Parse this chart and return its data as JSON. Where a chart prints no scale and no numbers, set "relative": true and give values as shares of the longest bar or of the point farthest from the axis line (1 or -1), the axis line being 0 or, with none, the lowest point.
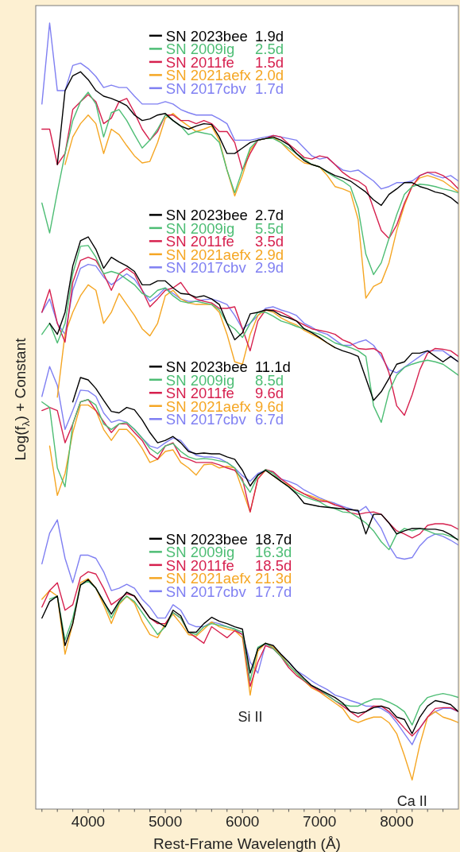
{
  "chart_data": {
    "type": "line",
    "relative": true,
    "xlabel": "Rest-Frame Wavelength (Å)",
    "ylabel": "Log(f$_{λ}$) + Constant",
    "xlim": [
      3320,
      8800
    ],
    "xticks": [
      {
        "value": 3400,
        "label": null
      },
      {
        "value": 3600,
        "label": null
      },
      {
        "value": 3800,
        "label": null
      },
      4000,
      {
        "value": 4200,
        "label": null
      },
      {
        "value": 4400,
        "label": null
      },
      {
        "value": 4600,
        "label": null
      },
      {
        "value": 4800,
        "label": null
      },
      5000,
      {
        "value": 5200,
        "label": null
      },
      {
        "value": 5400,
        "label": null
      },
      {
        "value": 5600,
        "label": null
      },
      {
        "value": 5800,
        "label": null
      },
      6000,
      {
        "value": 6200,
        "label": null
      },
      {
        "value": 6400,
        "label": null
      },
      {
        "value": 6600,
        "label": null
      },
      {
        "value": 6800,
        "label": null
      },
      7000,
      {
        "value": 7200,
        "label": null
      },
      {
        "value": 7400,
        "label": null
      },
      {
        "value": 7600,
        "label": null
      },
      {
        "value": 7800,
        "label": null
      },
      8000,
      {
        "value": 8200,
        "label": null
      },
      {
        "value": 8400,
        "label": null
      },
      {
        "value": 8600,
        "label": null
      }
    ],
    "tick_labels": "x",
    "legend": "top",
    "annotations": [
      {
        "text": "Si II",
        "x": 6100,
        "y": 0.145
      },
      {
        "text": "Ca II",
        "x": 8200,
        "y": 0.037
      }
    ],
    "x": [
      3400,
      3500,
      3600,
      3700,
      3800,
      3900,
      4000,
      4100,
      4200,
      4300,
      4400,
      4500,
      4600,
      4700,
      4800,
      4900,
      5000,
      5100,
      5200,
      5300,
      5400,
      5500,
      5600,
      5700,
      5800,
      5900,
      6000,
      6100,
      6200,
      6300,
      6400,
      6500,
      6600,
      6700,
      6800,
      6900,
      7000,
      7100,
      7200,
      7300,
      7400,
      7500,
      7600,
      7700,
      7800,
      7900,
      8000,
      8100,
      8200,
      8300,
      8400,
      8500,
      8600,
      8700,
      8800
    ],
    "series": [
      {
        "name": "SN 2023bee 1.9d",
        "color": "#000000",
        "values": [
          null,
          null,
          0.82,
          0.914,
          0.933,
          0.938,
          0.928,
          0.914,
          0.907,
          0.904,
          0.9,
          0.895,
          0.883,
          0.876,
          0.878,
          0.883,
          0.885,
          0.876,
          0.869,
          0.865,
          0.869,
          0.872,
          0.871,
          0.855,
          0.834,
          0.834,
          0.841,
          0.848,
          0.851,
          0.853,
          0.855,
          0.851,
          0.845,
          0.834,
          0.825,
          0.82,
          0.817,
          0.811,
          0.806,
          0.803,
          0.799,
          0.792,
          0.785,
          0.775,
          0.768,
          0.782,
          0.789,
          0.797,
          0.797,
          0.792,
          0.789,
          0.785,
          0.783,
          0.778,
          0.77
        ]
      },
      {
        "name": "SN 2009ig 2.5d",
        "color": "#4dbd74",
        "values": [
          0.771,
          0.733,
          0.785,
          0.834,
          0.876,
          0.9,
          0.912,
          0.897,
          0.855,
          0.886,
          0.89,
          0.876,
          0.858,
          0.841,
          0.851,
          0.865,
          0.883,
          0.876,
          0.869,
          0.858,
          0.862,
          0.86,
          0.858,
          0.848,
          0.813,
          0.784,
          0.813,
          0.841,
          0.851,
          0.853,
          0.853,
          0.848,
          0.841,
          0.834,
          0.827,
          0.82,
          0.817,
          0.81,
          0.804,
          0.799,
          0.792,
          0.764,
          0.706,
          0.68,
          0.695,
          0.726,
          0.756,
          0.782,
          0.792,
          0.795,
          0.794,
          0.792,
          0.789,
          0.787,
          0.784
        ]
      },
      {
        "name": "SN 2011fe 1.5d",
        "color": "#d6204e",
        "values": [
          0.865,
          0.865,
          0.82,
          0.834,
          0.89,
          0.9,
          0.909,
          0.9,
          0.872,
          0.879,
          0.9,
          0.904,
          0.886,
          0.865,
          0.851,
          0.862,
          0.883,
          0.883,
          0.876,
          0.876,
          0.872,
          0.876,
          0.872,
          0.862,
          0.862,
          0.848,
          0.813,
          0.834,
          0.851,
          0.853,
          0.857,
          0.855,
          0.846,
          0.838,
          0.829,
          0.827,
          0.831,
          0.829,
          0.82,
          0.81,
          0.803,
          0.799,
          0.792,
          0.764,
          0.736,
          0.726,
          0.743,
          0.771,
          0.792,
          0.806,
          0.81,
          0.81,
          0.806,
          0.799,
          0.789
        ]
      },
      {
        "name": "SN 2021aefx 2.0d",
        "color": "#f5a623",
        "values": [
          null,
          null,
          null,
          0.82,
          0.855,
          0.872,
          0.883,
          0.872,
          0.834,
          0.865,
          0.858,
          0.844,
          0.831,
          0.822,
          0.824,
          0.848,
          0.879,
          0.885,
          0.876,
          0.869,
          0.862,
          0.865,
          0.869,
          0.851,
          0.813,
          0.78,
          0.806,
          0.838,
          0.851,
          0.853,
          0.855,
          0.848,
          0.838,
          0.829,
          0.822,
          0.82,
          0.817,
          0.806,
          0.792,
          0.789,
          0.785,
          0.75,
          0.65,
          0.665,
          0.67,
          0.695,
          0.736,
          0.768,
          0.793,
          0.803,
          0.806,
          0.803,
          0.799,
          0.792,
          0.785
        ]
      },
      {
        "name": "SN 2017cbv 1.7d",
        "color": "#7f7ff2",
        "values": [
          0.897,
          1.0,
          0.914,
          0.914,
          0.946,
          0.949,
          0.942,
          0.932,
          0.918,
          0.921,
          0.918,
          0.918,
          0.907,
          0.897,
          0.897,
          0.897,
          0.9,
          0.897,
          0.89,
          0.886,
          0.883,
          0.883,
          0.883,
          0.878,
          0.872,
          0.851,
          0.851,
          0.851,
          0.853,
          0.855,
          0.857,
          0.855,
          0.853,
          0.851,
          0.841,
          0.831,
          0.827,
          0.829,
          0.82,
          0.813,
          0.811,
          0.813,
          0.806,
          0.799,
          0.789,
          0.792,
          0.797,
          0.797,
          0.799,
          0.806,
          0.81,
          0.806,
          0.803,
          0.806,
          0.799
        ]
      },
      {
        "name": "SN 2023bee 2.7d",
        "color": "#000000",
        "values": [
          null,
          0.618,
          0.604,
          0.632,
          0.691,
          0.723,
          0.728,
          0.712,
          0.688,
          0.702,
          0.696,
          0.691,
          0.684,
          0.667,
          0.667,
          0.672,
          0.672,
          0.663,
          0.656,
          0.655,
          0.651,
          0.653,
          0.649,
          0.642,
          0.618,
          0.597,
          0.606,
          0.63,
          0.632,
          0.635,
          0.634,
          0.628,
          0.625,
          0.621,
          0.611,
          0.606,
          0.6,
          0.593,
          0.587,
          0.583,
          0.58,
          0.576,
          0.548,
          0.52,
          0.531,
          0.548,
          0.566,
          0.569,
          0.58,
          0.58,
          0.583,
          0.576,
          0.569,
          0.576,
          0.569
        ]
      },
      {
        "name": "SN 2009ig 5.5d",
        "color": "#4dbd74",
        "values": [
          0.604,
          0.618,
          0.593,
          0.618,
          0.681,
          0.716,
          0.717,
          0.702,
          0.681,
          0.684,
          0.681,
          0.674,
          0.667,
          0.656,
          0.651,
          0.66,
          0.663,
          0.653,
          0.646,
          0.644,
          0.646,
          0.644,
          0.642,
          0.635,
          0.618,
          0.611,
          0.6,
          0.618,
          0.632,
          0.632,
          0.627,
          0.621,
          0.618,
          0.614,
          0.611,
          0.607,
          0.604,
          0.599,
          0.593,
          0.59,
          0.587,
          0.583,
          0.576,
          0.513,
          0.492,
          0.531,
          0.552,
          0.562,
          0.566,
          0.569,
          0.571,
          0.569,
          0.566,
          0.559,
          0.552
        ]
      },
      {
        "name": "SN 2011fe 3.5d",
        "color": "#d6204e",
        "values": [
          0.632,
          0.661,
          0.618,
          0.594,
          0.67,
          0.698,
          0.702,
          0.698,
          0.681,
          0.66,
          0.681,
          0.688,
          0.681,
          0.66,
          0.639,
          0.649,
          0.66,
          0.663,
          0.67,
          0.656,
          0.649,
          0.646,
          0.644,
          0.637,
          0.637,
          0.639,
          0.611,
          0.583,
          0.621,
          0.635,
          0.635,
          0.632,
          0.627,
          0.621,
          0.616,
          0.611,
          0.609,
          0.607,
          0.604,
          0.597,
          0.593,
          0.586,
          0.585,
          0.586,
          0.58,
          0.555,
          0.513,
          0.501,
          0.527,
          0.559,
          0.58,
          0.586,
          0.585,
          0.583,
          0.576
        ]
      },
      {
        "name": "SN 2021aefx 2.9d",
        "color": "#f5a623",
        "values": [
          null,
          null,
          0.524,
          0.605,
          0.632,
          0.653,
          0.667,
          0.66,
          0.618,
          0.632,
          0.656,
          0.642,
          0.628,
          0.611,
          0.602,
          0.618,
          0.653,
          0.66,
          0.649,
          0.644,
          0.642,
          0.642,
          0.642,
          0.632,
          0.604,
          0.569,
          0.566,
          0.604,
          0.628,
          0.635,
          0.632,
          0.625,
          0.62,
          0.616,
          0.609,
          0.604,
          0.599,
          0.593,
          0.587,
          null,
          null,
          null,
          null,
          null,
          null,
          null,
          null,
          null,
          null,
          null,
          null,
          null,
          null,
          null,
          null
        ]
      },
      {
        "name": "SN 2017cbv 2.9d",
        "color": "#7f7ff2",
        "values": [
          0.632,
          0.649,
          0.618,
          0.604,
          0.66,
          0.688,
          0.693,
          0.691,
          0.677,
          0.667,
          0.674,
          0.681,
          0.674,
          0.66,
          0.646,
          0.653,
          0.663,
          0.656,
          0.649,
          0.646,
          0.646,
          0.648,
          0.649,
          0.646,
          0.642,
          0.628,
          0.611,
          0.618,
          0.628,
          0.637,
          0.639,
          0.635,
          0.632,
          0.628,
          0.618,
          0.613,
          0.607,
          0.604,
          0.597,
          0.59,
          0.59,
          0.594,
          0.597,
          0.59,
          0.576,
          0.559,
          0.555,
          0.562,
          0.569,
          0.576,
          0.583,
          0.583,
          0.583,
          0.576,
          0.569
        ]
      },
      {
        "name": "SN 2023bee 11.1d",
        "color": "#000000",
        "values": [
          null,
          null,
          null,
          null,
          0.518,
          0.549,
          0.546,
          0.535,
          0.52,
          0.506,
          0.504,
          0.511,
          0.508,
          0.495,
          0.479,
          0.466,
          0.469,
          0.474,
          0.466,
          0.455,
          0.452,
          0.453,
          0.452,
          0.452,
          0.448,
          0.445,
          0.431,
          0.411,
          0.425,
          0.431,
          0.424,
          0.417,
          0.41,
          0.401,
          0.389,
          0.387,
          0.385,
          0.384,
          0.383,
          0.382,
          0.381,
          0.38,
          0.35,
          0.375,
          0.375,
          0.364,
          0.35,
          0.354,
          0.357,
          0.357,
          0.356,
          0.356,
          0.354,
          0.349,
          0.342
        ]
      },
      {
        "name": "SN 2009ig 8.5d",
        "color": "#4dbd74",
        "values": [
          0.518,
          0.511,
          0.434,
          0.41,
          0.49,
          0.518,
          0.521,
          0.514,
          0.49,
          0.483,
          0.49,
          0.492,
          0.483,
          0.472,
          0.459,
          0.452,
          0.462,
          0.465,
          0.455,
          0.448,
          0.445,
          0.446,
          0.445,
          0.443,
          0.441,
          0.434,
          0.417,
          0.403,
          0.424,
          0.432,
          0.427,
          0.417,
          0.41,
          0.403,
          0.398,
          0.394,
          0.391,
          0.385,
          0.382,
          0.378,
          0.377,
          0.371,
          0.364,
          0.354,
          0.34,
          0.33,
          0.35,
          0.357,
          0.354,
          0.357,
          0.354,
          0.35,
          0.35,
          0.347,
          0.343
        ]
      },
      {
        "name": "SN 2011fe 9.6d",
        "color": "#d6204e",
        "values": [
          0.507,
          0.511,
          0.507,
          0.466,
          0.49,
          0.518,
          0.521,
          0.507,
          0.493,
          0.479,
          0.49,
          0.49,
          0.479,
          0.469,
          0.452,
          0.445,
          0.462,
          0.466,
          0.448,
          0.445,
          0.441,
          0.441,
          0.441,
          0.438,
          0.434,
          0.431,
          0.42,
          0.378,
          0.42,
          0.432,
          0.429,
          0.42,
          0.413,
          0.406,
          0.401,
          0.396,
          0.392,
          0.391,
          0.387,
          0.384,
          0.377,
          0.375,
          0.377,
          0.378,
          0.375,
          0.364,
          0.354,
          0.35,
          0.345,
          0.35,
          0.361,
          0.363,
          0.363,
          0.361,
          0.356
        ]
      },
      {
        "name": "SN 2021aefx 9.6d",
        "color": "#f5a623",
        "values": [
          null,
          0.462,
          0.399,
          0.427,
          0.479,
          0.514,
          0.514,
          0.507,
          0.483,
          0.469,
          0.483,
          0.483,
          0.473,
          0.459,
          0.441,
          0.445,
          0.455,
          0.457,
          0.441,
          0.434,
          0.425,
          0.438,
          0.439,
          0.434,
          0.436,
          0.434,
          0.406,
          0.378,
          0.42,
          0.431,
          0.424,
          0.417,
          0.412,
          0.406,
          0.401,
          0.398,
          0.394,
          0.392,
          0.387,
          null,
          null,
          null,
          null,
          null,
          null,
          null,
          null,
          null,
          null,
          null,
          null,
          null,
          null,
          null,
          null
        ]
      },
      {
        "name": "SN 2017cbv 6.7d",
        "color": "#7f7ff2",
        "values": [
          0.525,
          0.563,
          0.539,
          0.483,
          0.507,
          0.533,
          0.532,
          0.525,
          0.504,
          0.492,
          0.495,
          0.492,
          0.483,
          0.472,
          0.462,
          0.459,
          0.466,
          0.472,
          0.469,
          0.457,
          0.45,
          0.448,
          0.448,
          0.446,
          0.441,
          0.434,
          0.424,
          0.417,
          0.427,
          0.431,
          0.429,
          0.42,
          0.417,
          0.413,
          0.406,
          0.401,
          0.396,
          0.392,
          0.389,
          0.385,
          0.382,
          0.378,
          0.385,
          0.371,
          0.357,
          0.335,
          0.32,
          0.318,
          0.32,
          0.335,
          0.345,
          0.35,
          0.347,
          0.342,
          0.336
        ]
      },
      {
        "name": "SN 2023bee 18.7d",
        "color": "#000000",
        "values": [
          0.243,
          0.264,
          0.271,
          0.208,
          0.236,
          0.285,
          0.292,
          0.281,
          0.264,
          0.248,
          0.264,
          0.276,
          0.271,
          0.257,
          0.243,
          0.238,
          0.232,
          0.253,
          0.246,
          0.225,
          0.225,
          0.236,
          0.244,
          0.239,
          0.236,
          0.232,
          0.229,
          0.173,
          0.204,
          0.211,
          0.208,
          0.197,
          0.187,
          0.176,
          0.166,
          0.157,
          0.152,
          0.147,
          0.142,
          0.135,
          0.124,
          0.122,
          0.124,
          0.129,
          0.131,
          0.128,
          0.117,
          0.114,
          0.096,
          0.117,
          0.131,
          0.138,
          0.136,
          0.133,
          0.124
        ]
      },
      {
        "name": "SN 2009ig 16.3d",
        "color": "#4dbd74",
        "values": [
          null,
          0.267,
          0.271,
          0.215,
          0.243,
          0.285,
          0.29,
          0.281,
          0.264,
          0.243,
          0.262,
          0.271,
          0.264,
          0.25,
          0.236,
          0.222,
          0.232,
          0.25,
          0.243,
          0.225,
          0.222,
          0.232,
          0.236,
          0.234,
          0.232,
          0.229,
          0.225,
          0.163,
          0.206,
          0.211,
          0.204,
          0.194,
          0.183,
          0.173,
          0.164,
          0.157,
          0.152,
          0.145,
          0.138,
          0.133,
          0.131,
          0.131,
          0.136,
          0.14,
          0.14,
          0.136,
          0.131,
          0.124,
          0.107,
          0.131,
          0.142,
          0.145,
          0.147,
          0.145,
          0.142
        ]
      },
      {
        "name": "SN 2011fe 18.5d",
        "color": "#d6204e",
        "values": [
          0.257,
          0.278,
          0.288,
          0.253,
          0.26,
          0.295,
          0.302,
          0.299,
          0.281,
          0.26,
          0.267,
          0.274,
          0.271,
          0.257,
          0.243,
          0.236,
          0.236,
          0.25,
          0.243,
          0.225,
          0.218,
          0.211,
          0.232,
          0.225,
          0.218,
          0.227,
          0.222,
          0.156,
          0.187,
          0.208,
          0.204,
          0.194,
          0.18,
          0.17,
          0.163,
          0.156,
          0.15,
          0.145,
          0.138,
          0.131,
          0.124,
          0.117,
          0.124,
          0.131,
          0.131,
          0.124,
          0.114,
          0.103,
          0.093,
          0.103,
          0.117,
          0.128,
          0.129,
          0.129,
          0.124
        ]
      },
      {
        "name": "SN 2021aefx 21.3d",
        "color": "#f5a623",
        "values": [
          0.267,
          0.278,
          0.271,
          0.197,
          0.236,
          0.288,
          0.293,
          0.281,
          0.26,
          0.236,
          0.26,
          0.271,
          0.262,
          0.239,
          0.222,
          0.218,
          0.236,
          0.248,
          0.236,
          0.222,
          0.22,
          0.229,
          0.238,
          0.232,
          0.229,
          0.227,
          0.218,
          0.145,
          0.201,
          0.211,
          0.206,
          0.196,
          0.183,
          0.173,
          0.163,
          0.154,
          0.149,
          0.142,
          0.135,
          0.128,
          0.114,
          0.11,
          0.114,
          0.117,
          0.117,
          0.11,
          0.096,
          0.068,
          0.037,
          0.082,
          0.117,
          0.124,
          0.117,
          0.114,
          0.11
        ]
      },
      {
        "name": "SN 2017cbv 17.7d",
        "color": "#7f7ff2",
        "values": [
          0.312,
          0.351,
          0.368,
          0.319,
          0.288,
          0.323,
          0.323,
          0.319,
          0.302,
          0.278,
          0.281,
          0.286,
          0.281,
          0.267,
          0.257,
          0.243,
          0.243,
          0.26,
          0.253,
          0.236,
          0.232,
          0.232,
          0.238,
          0.236,
          0.232,
          0.229,
          0.222,
          0.187,
          0.173,
          0.21,
          0.206,
          0.197,
          0.187,
          0.176,
          0.17,
          0.163,
          0.157,
          0.152,
          0.145,
          0.142,
          0.138,
          0.135,
          0.131,
          0.131,
          0.128,
          0.122,
          0.11,
          0.096,
          0.082,
          0.103,
          0.117,
          0.124,
          0.128,
          0.128,
          0.124
        ]
      }
    ]
  }
}
